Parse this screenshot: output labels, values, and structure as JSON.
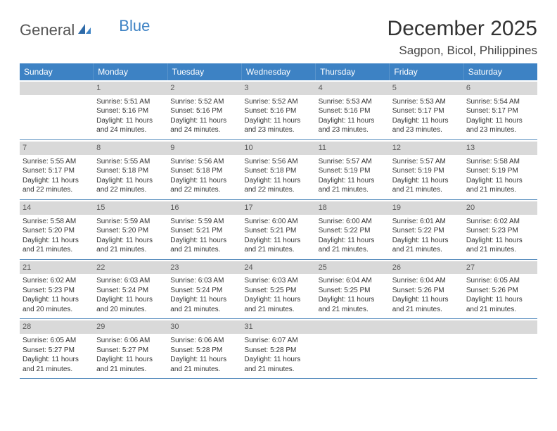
{
  "logo": {
    "text1": "General",
    "text2": "Blue"
  },
  "title": "December 2025",
  "location": "Sagpon, Bicol, Philippines",
  "colors": {
    "header_bg": "#3d82c4",
    "daynum_bg": "#d9d9d9",
    "row_border": "#5a8fbf",
    "page_bg": "#ffffff",
    "text": "#333333"
  },
  "daysOfWeek": [
    "Sunday",
    "Monday",
    "Tuesday",
    "Wednesday",
    "Thursday",
    "Friday",
    "Saturday"
  ],
  "weeks": [
    [
      {
        "n": "",
        "sr": "",
        "ss": "",
        "dl": ""
      },
      {
        "n": "1",
        "sr": "Sunrise: 5:51 AM",
        "ss": "Sunset: 5:16 PM",
        "dl": "Daylight: 11 hours and 24 minutes."
      },
      {
        "n": "2",
        "sr": "Sunrise: 5:52 AM",
        "ss": "Sunset: 5:16 PM",
        "dl": "Daylight: 11 hours and 24 minutes."
      },
      {
        "n": "3",
        "sr": "Sunrise: 5:52 AM",
        "ss": "Sunset: 5:16 PM",
        "dl": "Daylight: 11 hours and 23 minutes."
      },
      {
        "n": "4",
        "sr": "Sunrise: 5:53 AM",
        "ss": "Sunset: 5:16 PM",
        "dl": "Daylight: 11 hours and 23 minutes."
      },
      {
        "n": "5",
        "sr": "Sunrise: 5:53 AM",
        "ss": "Sunset: 5:17 PM",
        "dl": "Daylight: 11 hours and 23 minutes."
      },
      {
        "n": "6",
        "sr": "Sunrise: 5:54 AM",
        "ss": "Sunset: 5:17 PM",
        "dl": "Daylight: 11 hours and 23 minutes."
      }
    ],
    [
      {
        "n": "7",
        "sr": "Sunrise: 5:55 AM",
        "ss": "Sunset: 5:17 PM",
        "dl": "Daylight: 11 hours and 22 minutes."
      },
      {
        "n": "8",
        "sr": "Sunrise: 5:55 AM",
        "ss": "Sunset: 5:18 PM",
        "dl": "Daylight: 11 hours and 22 minutes."
      },
      {
        "n": "9",
        "sr": "Sunrise: 5:56 AM",
        "ss": "Sunset: 5:18 PM",
        "dl": "Daylight: 11 hours and 22 minutes."
      },
      {
        "n": "10",
        "sr": "Sunrise: 5:56 AM",
        "ss": "Sunset: 5:18 PM",
        "dl": "Daylight: 11 hours and 22 minutes."
      },
      {
        "n": "11",
        "sr": "Sunrise: 5:57 AM",
        "ss": "Sunset: 5:19 PM",
        "dl": "Daylight: 11 hours and 21 minutes."
      },
      {
        "n": "12",
        "sr": "Sunrise: 5:57 AM",
        "ss": "Sunset: 5:19 PM",
        "dl": "Daylight: 11 hours and 21 minutes."
      },
      {
        "n": "13",
        "sr": "Sunrise: 5:58 AM",
        "ss": "Sunset: 5:19 PM",
        "dl": "Daylight: 11 hours and 21 minutes."
      }
    ],
    [
      {
        "n": "14",
        "sr": "Sunrise: 5:58 AM",
        "ss": "Sunset: 5:20 PM",
        "dl": "Daylight: 11 hours and 21 minutes."
      },
      {
        "n": "15",
        "sr": "Sunrise: 5:59 AM",
        "ss": "Sunset: 5:20 PM",
        "dl": "Daylight: 11 hours and 21 minutes."
      },
      {
        "n": "16",
        "sr": "Sunrise: 5:59 AM",
        "ss": "Sunset: 5:21 PM",
        "dl": "Daylight: 11 hours and 21 minutes."
      },
      {
        "n": "17",
        "sr": "Sunrise: 6:00 AM",
        "ss": "Sunset: 5:21 PM",
        "dl": "Daylight: 11 hours and 21 minutes."
      },
      {
        "n": "18",
        "sr": "Sunrise: 6:00 AM",
        "ss": "Sunset: 5:22 PM",
        "dl": "Daylight: 11 hours and 21 minutes."
      },
      {
        "n": "19",
        "sr": "Sunrise: 6:01 AM",
        "ss": "Sunset: 5:22 PM",
        "dl": "Daylight: 11 hours and 21 minutes."
      },
      {
        "n": "20",
        "sr": "Sunrise: 6:02 AM",
        "ss": "Sunset: 5:23 PM",
        "dl": "Daylight: 11 hours and 21 minutes."
      }
    ],
    [
      {
        "n": "21",
        "sr": "Sunrise: 6:02 AM",
        "ss": "Sunset: 5:23 PM",
        "dl": "Daylight: 11 hours and 20 minutes."
      },
      {
        "n": "22",
        "sr": "Sunrise: 6:03 AM",
        "ss": "Sunset: 5:24 PM",
        "dl": "Daylight: 11 hours and 20 minutes."
      },
      {
        "n": "23",
        "sr": "Sunrise: 6:03 AM",
        "ss": "Sunset: 5:24 PM",
        "dl": "Daylight: 11 hours and 21 minutes."
      },
      {
        "n": "24",
        "sr": "Sunrise: 6:03 AM",
        "ss": "Sunset: 5:25 PM",
        "dl": "Daylight: 11 hours and 21 minutes."
      },
      {
        "n": "25",
        "sr": "Sunrise: 6:04 AM",
        "ss": "Sunset: 5:25 PM",
        "dl": "Daylight: 11 hours and 21 minutes."
      },
      {
        "n": "26",
        "sr": "Sunrise: 6:04 AM",
        "ss": "Sunset: 5:26 PM",
        "dl": "Daylight: 11 hours and 21 minutes."
      },
      {
        "n": "27",
        "sr": "Sunrise: 6:05 AM",
        "ss": "Sunset: 5:26 PM",
        "dl": "Daylight: 11 hours and 21 minutes."
      }
    ],
    [
      {
        "n": "28",
        "sr": "Sunrise: 6:05 AM",
        "ss": "Sunset: 5:27 PM",
        "dl": "Daylight: 11 hours and 21 minutes."
      },
      {
        "n": "29",
        "sr": "Sunrise: 6:06 AM",
        "ss": "Sunset: 5:27 PM",
        "dl": "Daylight: 11 hours and 21 minutes."
      },
      {
        "n": "30",
        "sr": "Sunrise: 6:06 AM",
        "ss": "Sunset: 5:28 PM",
        "dl": "Daylight: 11 hours and 21 minutes."
      },
      {
        "n": "31",
        "sr": "Sunrise: 6:07 AM",
        "ss": "Sunset: 5:28 PM",
        "dl": "Daylight: 11 hours and 21 minutes."
      },
      {
        "n": "",
        "sr": "",
        "ss": "",
        "dl": ""
      },
      {
        "n": "",
        "sr": "",
        "ss": "",
        "dl": ""
      },
      {
        "n": "",
        "sr": "",
        "ss": "",
        "dl": ""
      }
    ]
  ]
}
